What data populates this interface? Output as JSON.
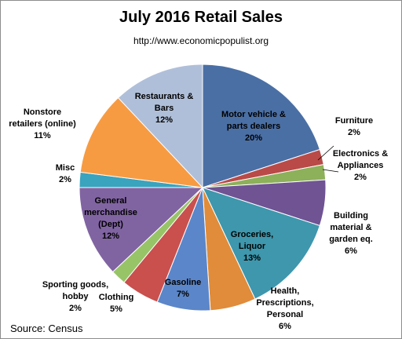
{
  "chart_data": {
    "type": "pie",
    "title": "July 2016 Retail Sales",
    "subtitle": "http://www.economicpopulist.org",
    "source": "Source:  Census",
    "slices": [
      {
        "label": [
          "Motor vehicle &",
          "parts dealers",
          "20%"
        ],
        "value": 20,
        "color": "#4a6fa5"
      },
      {
        "label": [
          "Furniture",
          "2%"
        ],
        "value": 2,
        "color": "#b94a48"
      },
      {
        "label": [
          "Electronics &",
          "Appliances",
          "2%"
        ],
        "value": 2,
        "color": "#8db05a"
      },
      {
        "label": [
          "Building",
          "material &",
          "garden eq.",
          "6%"
        ],
        "value": 6,
        "color": "#6f5393"
      },
      {
        "label": [
          "Groceries,",
          "Liquor",
          "13%"
        ],
        "value": 13,
        "color": "#3e97ad"
      },
      {
        "label": [
          "Health,",
          "Prescriptions,",
          "Personal",
          "6%"
        ],
        "value": 6,
        "color": "#e08c3a"
      },
      {
        "label": [
          "Gasoline",
          "7%"
        ],
        "value": 7,
        "color": "#5b86c9"
      },
      {
        "label": [
          "Clothing",
          "5%"
        ],
        "value": 5,
        "color": "#c9504d"
      },
      {
        "label": [
          "Sporting goods,",
          "hobby",
          "2%"
        ],
        "value": 2,
        "color": "#98c468"
      },
      {
        "label": [
          "General",
          "merchandise",
          "(Dept)",
          "12%"
        ],
        "value": 12,
        "color": "#8064a2"
      },
      {
        "label": [
          "Misc",
          "2%"
        ],
        "value": 2,
        "color": "#3aa3bd"
      },
      {
        "label": [
          "Nonstore",
          "retailers (online)",
          "11%"
        ],
        "value": 11,
        "color": "#f79b42"
      },
      {
        "label": [
          "Restaurants &",
          "Bars",
          "12%"
        ],
        "value": 12,
        "color": "#b0bfd9"
      }
    ]
  }
}
